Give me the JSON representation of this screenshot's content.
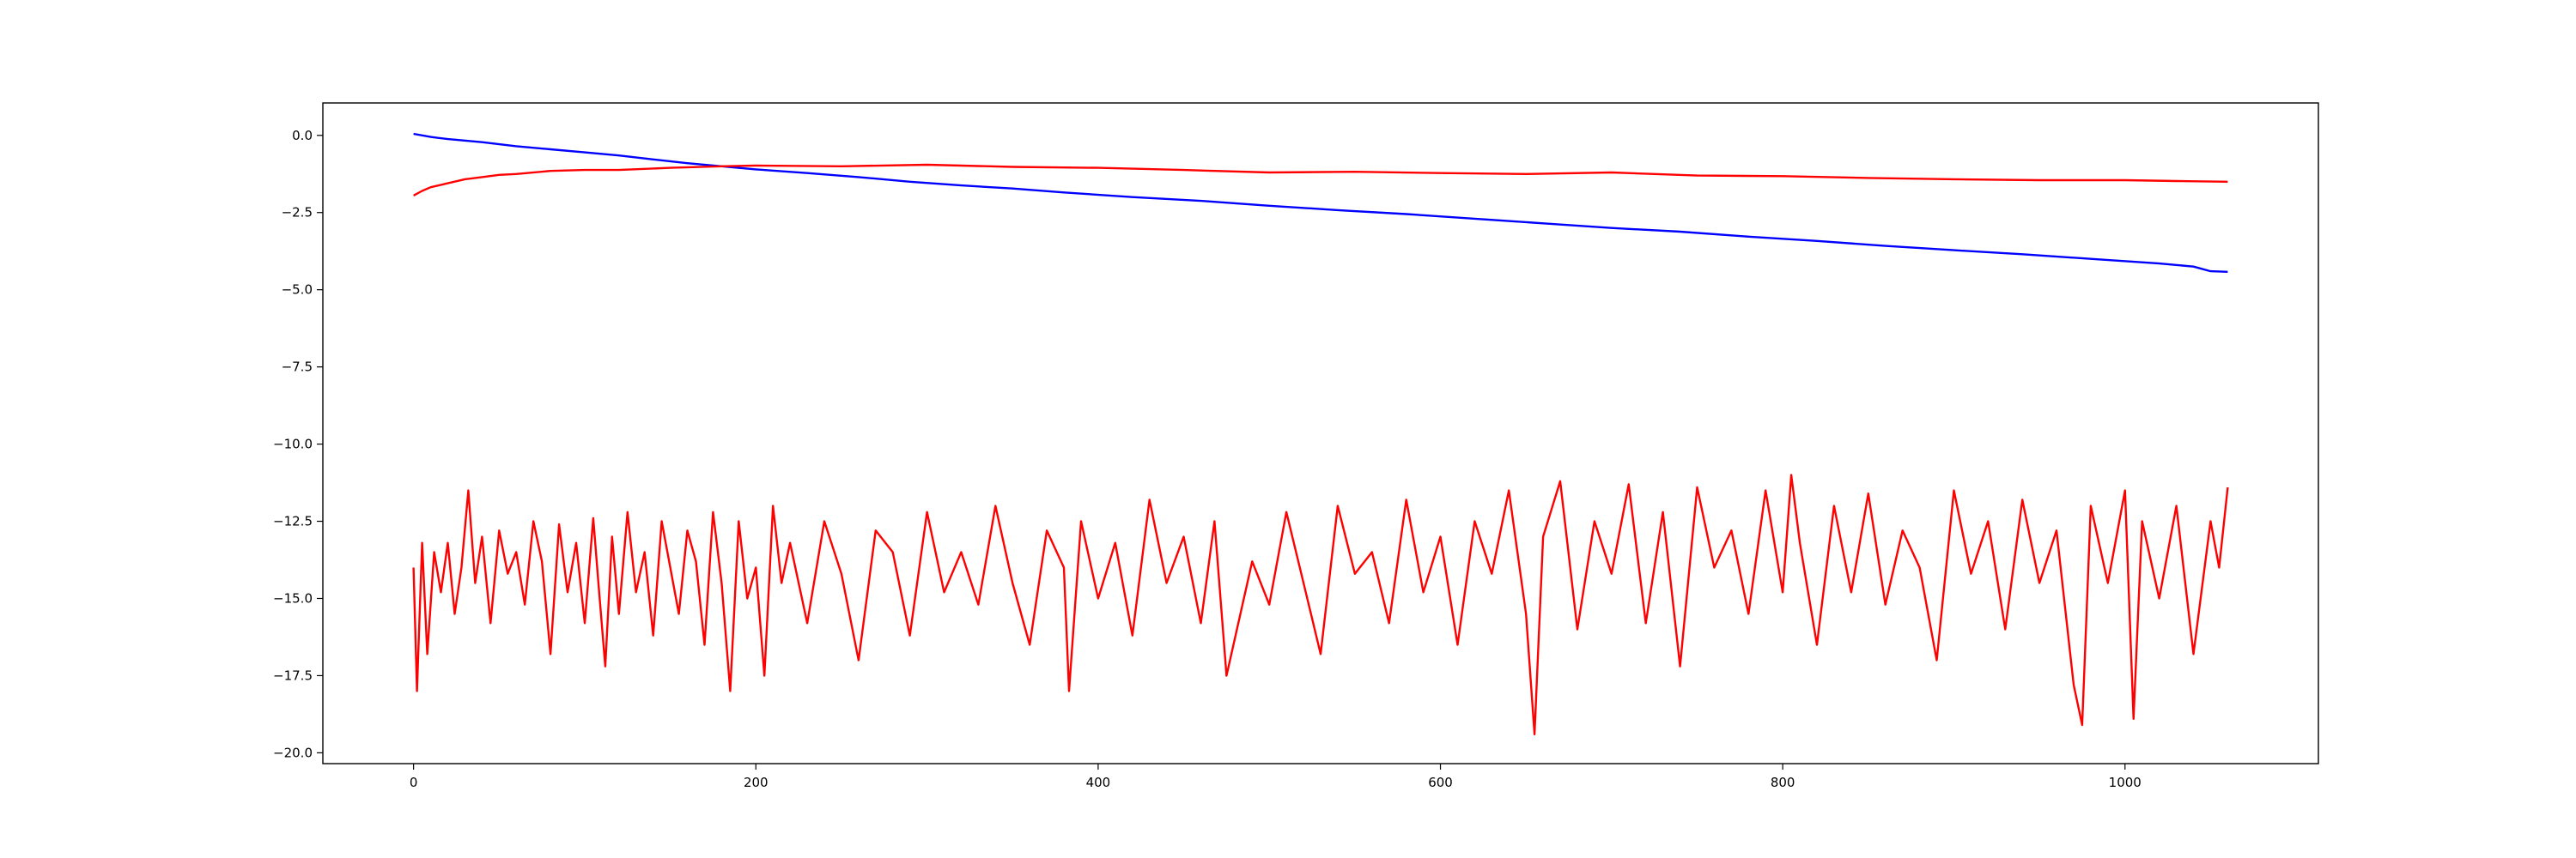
{
  "chart_data": {
    "type": "line",
    "title": "",
    "xlabel": "",
    "ylabel": "",
    "grid": false,
    "legend": "none",
    "xlim": [
      -53,
      1113
    ],
    "ylim": [
      -20.35,
      1.05
    ],
    "xticks": [
      0,
      200,
      400,
      600,
      800,
      1000
    ],
    "yticks": [
      0.0,
      -2.5,
      -5.0,
      -7.5,
      -10.0,
      -12.5,
      -15.0,
      -17.5,
      -20.0
    ],
    "xtick_labels": [
      "0",
      "200",
      "400",
      "600",
      "800",
      "1000"
    ],
    "ytick_labels": [
      "0.0",
      "−2.5",
      "−5.0",
      "−7.5",
      "−10.0",
      "−12.5",
      "−15.0",
      "−17.5",
      "−20.0"
    ],
    "series": [
      {
        "color": "#0000ff",
        "x": [
          0,
          10,
          20,
          40,
          60,
          80,
          100,
          120,
          140,
          160,
          180,
          200,
          230,
          260,
          290,
          320,
          350,
          380,
          420,
          460,
          500,
          540,
          580,
          620,
          660,
          700,
          740,
          780,
          820,
          860,
          900,
          940,
          980,
          1020,
          1040,
          1050,
          1060
        ],
        "y": [
          0.05,
          -0.05,
          -0.12,
          -0.22,
          -0.35,
          -0.45,
          -0.55,
          -0.65,
          -0.78,
          -0.9,
          -1.0,
          -1.1,
          -1.22,
          -1.35,
          -1.5,
          -1.62,
          -1.72,
          -1.85,
          -2.0,
          -2.12,
          -2.28,
          -2.42,
          -2.55,
          -2.7,
          -2.85,
          -3.0,
          -3.12,
          -3.28,
          -3.42,
          -3.58,
          -3.72,
          -3.85,
          -4.0,
          -4.15,
          -4.25,
          -4.4,
          -4.42
        ]
      },
      {
        "color": "#ff0000",
        "x": [
          0,
          5,
          10,
          20,
          30,
          40,
          50,
          60,
          80,
          100,
          120,
          150,
          180,
          200,
          250,
          300,
          350,
          400,
          450,
          500,
          550,
          600,
          650,
          700,
          750,
          800,
          850,
          900,
          950,
          1000,
          1030,
          1060
        ],
        "y": [
          -1.95,
          -1.8,
          -1.68,
          -1.55,
          -1.42,
          -1.35,
          -1.28,
          -1.25,
          -1.15,
          -1.12,
          -1.12,
          -1.05,
          -1.0,
          -0.98,
          -1.0,
          -0.95,
          -1.02,
          -1.05,
          -1.12,
          -1.2,
          -1.18,
          -1.22,
          -1.25,
          -1.2,
          -1.3,
          -1.32,
          -1.38,
          -1.42,
          -1.45,
          -1.45,
          -1.48,
          -1.5
        ]
      },
      {
        "color": "#ff0000",
        "x": [
          0,
          2,
          5,
          8,
          12,
          16,
          20,
          24,
          28,
          32,
          36,
          40,
          45,
          50,
          55,
          60,
          65,
          70,
          75,
          80,
          85,
          90,
          95,
          100,
          105,
          108,
          112,
          116,
          120,
          125,
          130,
          135,
          140,
          145,
          150,
          155,
          160,
          165,
          170,
          175,
          180,
          185,
          190,
          195,
          200,
          205,
          210,
          215,
          220,
          230,
          240,
          250,
          260,
          270,
          280,
          290,
          300,
          310,
          320,
          330,
          340,
          350,
          360,
          370,
          380,
          383,
          390,
          400,
          410,
          420,
          430,
          440,
          450,
          460,
          468,
          475,
          490,
          500,
          510,
          520,
          530,
          540,
          550,
          560,
          570,
          580,
          590,
          600,
          610,
          620,
          630,
          640,
          650,
          655,
          660,
          670,
          680,
          690,
          700,
          710,
          720,
          730,
          740,
          750,
          760,
          770,
          780,
          790,
          800,
          805,
          810,
          820,
          830,
          840,
          850,
          860,
          870,
          880,
          890,
          900,
          910,
          920,
          930,
          940,
          950,
          960,
          970,
          975,
          980,
          990,
          1000,
          1005,
          1010,
          1020,
          1030,
          1040,
          1050,
          1055,
          1060
        ],
        "y": [
          -14.0,
          -18.0,
          -13.2,
          -16.8,
          -13.5,
          -14.8,
          -13.2,
          -15.5,
          -14.0,
          -11.5,
          -14.5,
          -13.0,
          -15.8,
          -12.8,
          -14.2,
          -13.5,
          -15.2,
          -12.5,
          -13.8,
          -16.8,
          -12.6,
          -14.8,
          -13.2,
          -15.8,
          -12.4,
          -14.5,
          -17.2,
          -13.0,
          -15.5,
          -12.2,
          -14.8,
          -13.5,
          -16.2,
          -12.5,
          -14.0,
          -15.5,
          -12.8,
          -13.8,
          -16.5,
          -12.2,
          -14.5,
          -18.0,
          -12.5,
          -15.0,
          -14.0,
          -17.5,
          -12.0,
          -14.5,
          -13.2,
          -15.8,
          -12.5,
          -14.2,
          -17.0,
          -12.8,
          -13.5,
          -16.2,
          -12.2,
          -14.8,
          -13.5,
          -15.2,
          -12.0,
          -14.5,
          -16.5,
          -12.8,
          -14.0,
          -18.0,
          -12.5,
          -15.0,
          -13.2,
          -16.2,
          -11.8,
          -14.5,
          -13.0,
          -15.8,
          -12.5,
          -17.5,
          -13.8,
          -15.2,
          -12.2,
          -14.5,
          -16.8,
          -12.0,
          -14.2,
          -13.5,
          -15.8,
          -11.8,
          -14.8,
          -13.0,
          -16.5,
          -12.5,
          -14.2,
          -11.5,
          -15.5,
          -19.4,
          -13.0,
          -11.2,
          -16.0,
          -12.5,
          -14.2,
          -11.3,
          -15.8,
          -12.2,
          -17.2,
          -11.4,
          -14.0,
          -12.8,
          -15.5,
          -11.5,
          -14.8,
          -11.0,
          -13.2,
          -16.5,
          -12.0,
          -14.8,
          -11.6,
          -15.2,
          -12.8,
          -14.0,
          -17.0,
          -11.5,
          -14.2,
          -12.5,
          -16.0,
          -11.8,
          -14.5,
          -12.8,
          -17.8,
          -19.1,
          -12.0,
          -14.5,
          -11.5,
          -18.9,
          -12.5,
          -15.0,
          -12.0,
          -16.8,
          -12.5,
          -14.0,
          -11.4
        ]
      }
    ]
  }
}
